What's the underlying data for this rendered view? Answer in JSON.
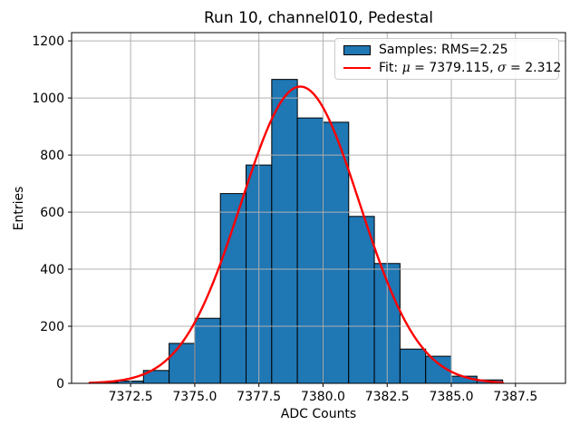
{
  "chart_data": {
    "type": "bar",
    "style": "histogram-with-fit",
    "title": "Run 10, channel010, Pedestal",
    "xlabel": "ADC Counts",
    "ylabel": "Entries",
    "xlim": [
      7370.2,
      7389.45
    ],
    "ylim": [
      0,
      1229
    ],
    "grid": true,
    "grid_color": "#b0b0b0",
    "background_color": "#ffffff",
    "xticks": [
      7372.5,
      7375.0,
      7377.5,
      7380.0,
      7382.5,
      7385.0,
      7387.5
    ],
    "xtick_labels": [
      "7372.5",
      "7375.0",
      "7377.5",
      "7380.0",
      "7382.5",
      "7385.0",
      "7387.5"
    ],
    "yticks": [
      0,
      200,
      400,
      600,
      800,
      1000,
      1200
    ],
    "ytick_labels": [
      "0",
      "200",
      "400",
      "600",
      "800",
      "1000",
      "1200"
    ],
    "bin_edges": [
      7371,
      7372,
      7373,
      7374,
      7375,
      7376,
      7377,
      7378,
      7379,
      7380,
      7381,
      7382,
      7383,
      7384,
      7385,
      7386,
      7387
    ],
    "counts": [
      4,
      8,
      45,
      140,
      228,
      665,
      765,
      1065,
      930,
      915,
      585,
      420,
      120,
      95,
      25,
      12
    ],
    "bar_color": "#1f77b4",
    "bar_edge_color": "#000000",
    "rms": 2.25,
    "fit": {
      "mu": 7379.115,
      "sigma": 2.312,
      "amplitude": 1040,
      "x_start": 7370.9,
      "x_end": 7387.0,
      "color": "#ff0000",
      "linewidth": 2.4
    },
    "legend": {
      "position": "upper-right",
      "entries": [
        {
          "type": "patch",
          "color": "#1f77b4",
          "label": "Samples: RMS=2.25"
        },
        {
          "type": "line",
          "color": "#ff0000",
          "label": "Fit: μ = 7379.115, σ = 2.312"
        }
      ]
    }
  }
}
